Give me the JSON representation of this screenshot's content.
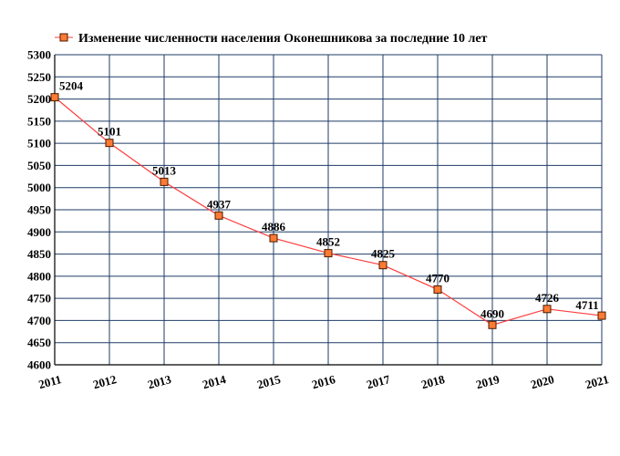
{
  "chart_data": {
    "type": "line",
    "title": "",
    "xlabel": "",
    "ylabel": "",
    "categories": [
      "2011",
      "2012",
      "2013",
      "2014",
      "2015",
      "2016",
      "2017",
      "2018",
      "2019",
      "2020",
      "2021"
    ],
    "series": [
      {
        "name": "Изменение численности населения Оконешникова за последние 10 лет",
        "values": [
          5204,
          5101,
          5013,
          4937,
          4886,
          4852,
          4825,
          4770,
          4690,
          4726,
          4711
        ]
      }
    ],
    "data_labels": [
      "5204",
      "5101",
      "5013",
      "4937",
      "4886",
      "4852",
      "4825",
      "4770",
      "4690",
      "4726",
      "4711"
    ],
    "ylim": [
      4600,
      5300
    ],
    "y_ticks": [
      "4600",
      "4650",
      "4700",
      "4750",
      "4800",
      "4850",
      "4900",
      "4950",
      "5000",
      "5050",
      "5100",
      "5150",
      "5200",
      "5250",
      "5300"
    ],
    "grid": true,
    "legend_position": "top",
    "colors": {
      "line": "#ff3b3b",
      "marker_fill": "#ff7a33",
      "marker_stroke": "#4a1a00",
      "grid": "#1f3b66",
      "axis": "#000000"
    }
  }
}
